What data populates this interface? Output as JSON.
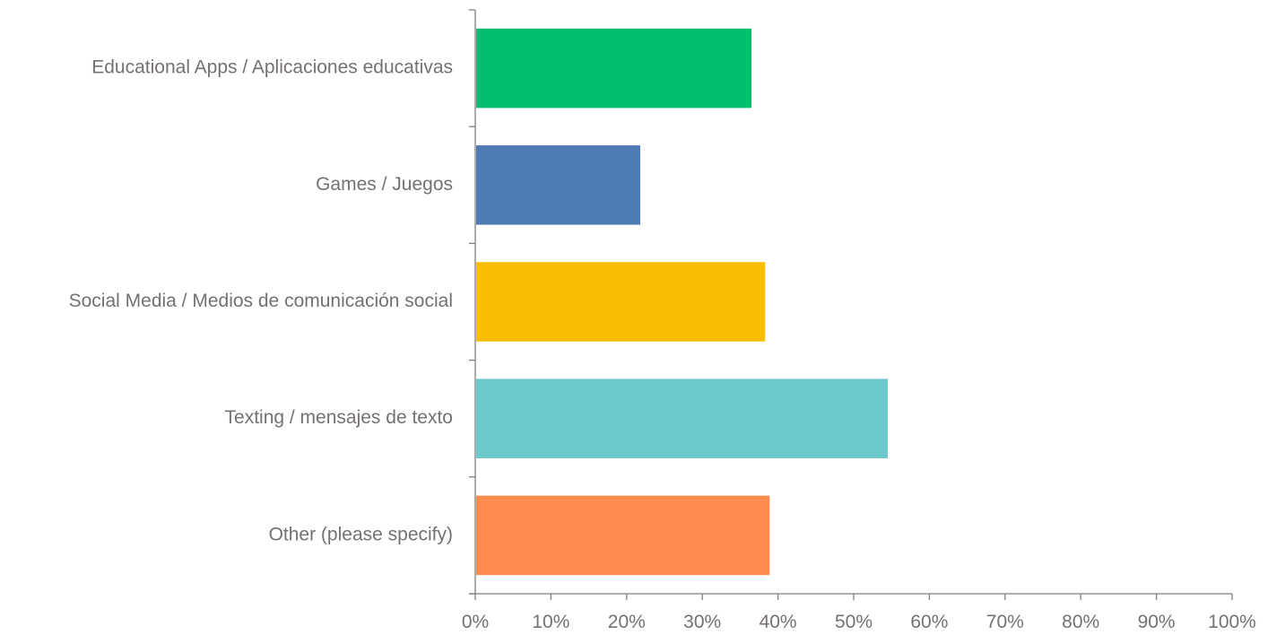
{
  "chart_data": {
    "type": "bar",
    "orientation": "horizontal",
    "categories": [
      "Educational Apps / Aplicaciones educativas",
      "Games / Juegos",
      "Social Media / Medios de comunicación social",
      "Texting / mensajes de texto",
      "Other (please specify)"
    ],
    "values": [
      36.5,
      21.8,
      38.3,
      54.5,
      38.9
    ],
    "colors": [
      "#00bf6f",
      "#507cb6",
      "#f9be00",
      "#6bc8cd",
      "#ff8b4f"
    ],
    "xlim": [
      0,
      100
    ],
    "xticks": [
      0,
      10,
      20,
      30,
      40,
      50,
      60,
      70,
      80,
      90,
      100
    ],
    "xtick_labels": [
      "0%",
      "10%",
      "20%",
      "30%",
      "40%",
      "50%",
      "60%",
      "70%",
      "80%",
      "90%",
      "100%"
    ],
    "title": "",
    "xlabel": "",
    "ylabel": "",
    "grid": false,
    "legend": "none"
  }
}
